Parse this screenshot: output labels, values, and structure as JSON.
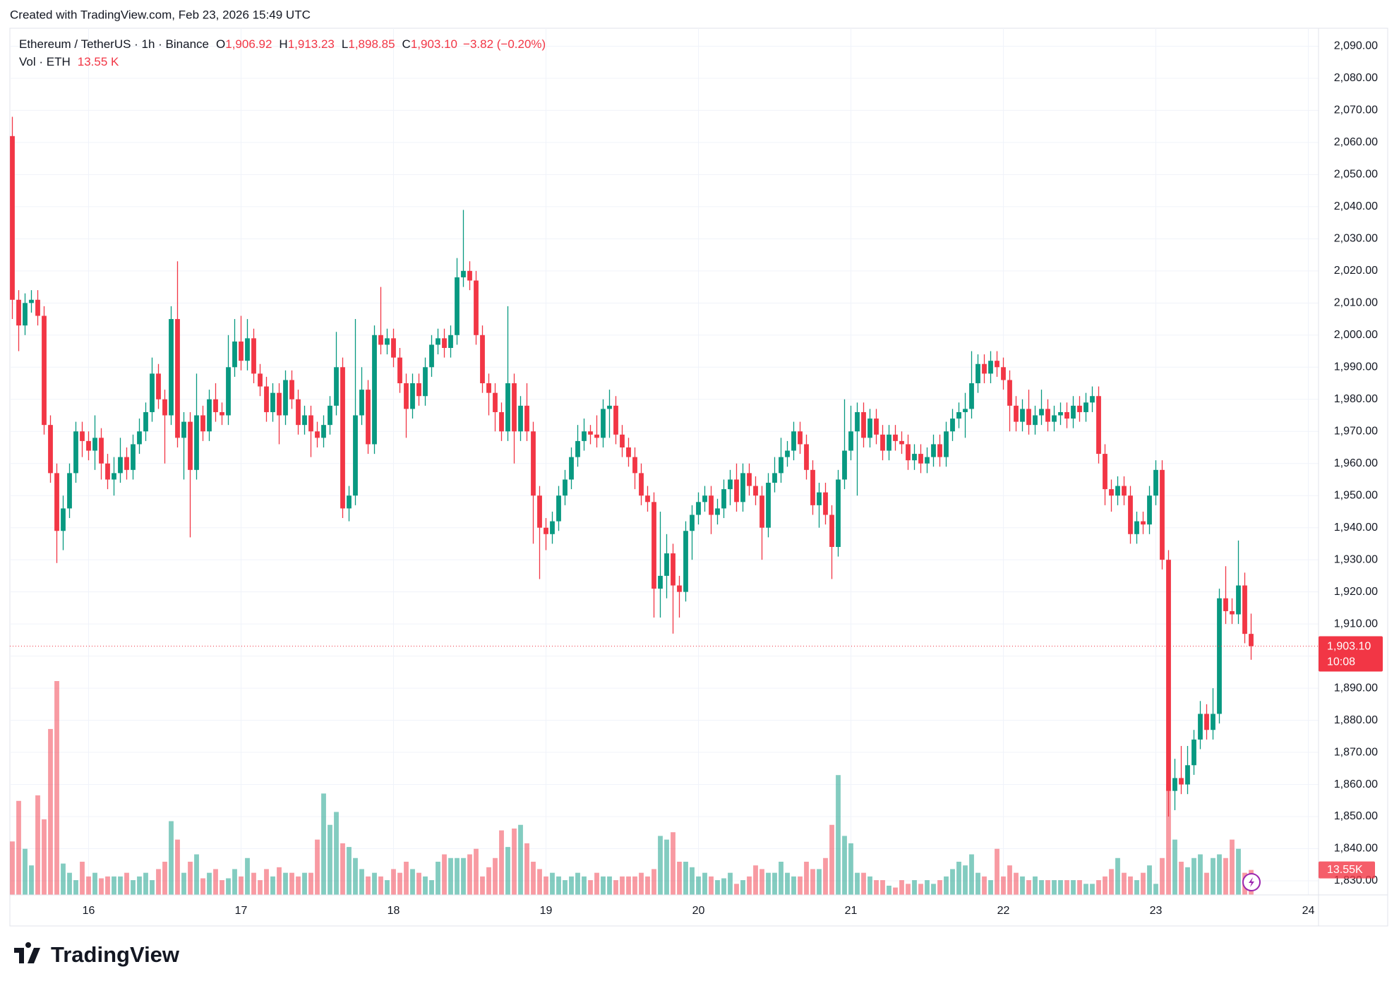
{
  "watermark": "Created with TradingView.com, Feb 23, 2026 15:49 UTC",
  "logo": "TradingView",
  "chart_data": {
    "type": "candlestick",
    "title": "Ethereum / TetherUS · 1h · Binance",
    "ohlc_legend": [
      {
        "key": "O",
        "label": "1,906.92"
      },
      {
        "key": "H",
        "label": "1,913.23"
      },
      {
        "key": "L",
        "label": "1,898.85"
      },
      {
        "key": "C",
        "label": "1,903.10"
      }
    ],
    "change": "−3.82 (−0.20%)",
    "volume_title": "Vol · ETH",
    "volume_label": "13.55 K",
    "volume_tag": "13.55K",
    "last_price_label": "1,903.10",
    "countdown": "10:08",
    "up_color": "#089981",
    "down_color": "#f23645",
    "open": [
      2062,
      2011,
      2003,
      2010,
      2011,
      2006,
      1972,
      1957,
      1939,
      1946,
      1957,
      1970,
      1967,
      1964,
      1968,
      1960,
      1955,
      1957,
      1962,
      1958,
      1966,
      1970,
      1976,
      1988,
      1980,
      1975,
      2005,
      1968,
      1973,
      1958,
      1975,
      1970,
      1980,
      1976,
      1975,
      1990,
      1998,
      1992,
      1999,
      1988,
      1984,
      1976,
      1982,
      1975,
      1986,
      1980,
      1972,
      1975,
      1970,
      1968,
      1972,
      1978,
      1990,
      1946,
      1950,
      1975,
      1983,
      1966,
      2000,
      1997,
      1999,
      1993,
      1985,
      1977,
      1985,
      1981,
      1990,
      1997,
      1999,
      1996,
      2000,
      2018,
      2020,
      2017,
      2000,
      1985,
      1982,
      1976,
      1970,
      1985,
      1970,
      1978,
      1970,
      1950,
      1940,
      1938,
      1942,
      1950,
      1955,
      1962,
      1967,
      1970,
      1969,
      1968,
      1977,
      1978,
      1969,
      1965,
      1962,
      1957,
      1950,
      1948,
      1921,
      1925,
      1932,
      1922,
      1920,
      1939,
      1944,
      1948,
      1950,
      1944,
      1946,
      1952,
      1955,
      1948,
      1957,
      1953,
      1950,
      1940,
      1954,
      1957,
      1962,
      1964,
      1970,
      1966,
      1958,
      1947,
      1951,
      1944,
      1934,
      1955,
      1964,
      1970,
      1976,
      1968,
      1974,
      1969,
      1964,
      1969,
      1967,
      1966,
      1961,
      1963,
      1960,
      1962,
      1966,
      1962,
      1970,
      1974,
      1976,
      1977,
      1985,
      1991,
      1988,
      1992,
      1990,
      1986,
      1978,
      1973,
      1977,
      1972,
      1975,
      1977,
      1973,
      1975,
      1976,
      1974,
      1978,
      1976,
      1979,
      1981,
      1963,
      1952,
      1950,
      1953,
      1950,
      1938,
      1942,
      1941,
      1950,
      1958,
      1930,
      1858,
      1862,
      1860,
      1866,
      1874,
      1882,
      1877,
      1882,
      1918,
      1914,
      1913,
      1922,
      1906.92
    ],
    "high": [
      2068,
      2014,
      2013,
      2014,
      2014,
      2009,
      1975,
      1960,
      1950,
      1960,
      1973,
      1973,
      1970,
      1975,
      1971,
      1963,
      1962,
      1968,
      1965,
      1969,
      1974,
      1979,
      1993,
      1991,
      1983,
      2009,
      2023,
      1976,
      1976,
      1988,
      1978,
      1983,
      1985,
      1979,
      2000,
      2005,
      2006,
      2005,
      2002,
      1991,
      1987,
      1985,
      1985,
      1989,
      1989,
      1983,
      1978,
      1978,
      1973,
      1975,
      1981,
      2001,
      1993,
      1953,
      2005,
      1990,
      1986,
      2003,
      2015,
      2002,
      2002,
      1996,
      1988,
      1988,
      1988,
      1993,
      2000,
      2002,
      2002,
      2003,
      2024,
      2039,
      2023,
      2020,
      2003,
      1988,
      1985,
      1979,
      2009,
      1988,
      1981,
      1985,
      1973,
      1953,
      1943,
      1945,
      1953,
      1958,
      1965,
      1972,
      1974,
      1972,
      1975,
      1980,
      1983,
      1981,
      1972,
      1968,
      1965,
      1960,
      1953,
      1951,
      1945,
      1938,
      1935,
      1925,
      1942,
      1947,
      1951,
      1953,
      1953,
      1949,
      1955,
      1958,
      1960,
      1960,
      1960,
      1956,
      1953,
      1957,
      1962,
      1968,
      1967,
      1973,
      1973,
      1969,
      1961,
      1954,
      1954,
      1947,
      1958,
      1980,
      1978,
      1979,
      1979,
      1977,
      1977,
      1972,
      1972,
      1972,
      1970,
      1969,
      1966,
      1966,
      1965,
      1969,
      1969,
      1973,
      1977,
      1979,
      1982,
      1995,
      1994,
      1994,
      1995,
      1995,
      1993,
      1989,
      1981,
      1980,
      1983,
      1978,
      1983,
      1980,
      1978,
      1979,
      1979,
      1981,
      1981,
      1982,
      1984,
      1984,
      1966,
      1955,
      1956,
      1956,
      1953,
      1945,
      1945,
      1953,
      1961,
      1961,
      1933,
      1868,
      1872,
      1872,
      1877,
      1886,
      1885,
      1890,
      1921,
      1928,
      1918,
      1936,
      1926,
      1913.23
    ],
    "low": [
      2005,
      1995,
      2000,
      2007,
      2003,
      1969,
      1954,
      1929,
      1933,
      1943,
      1954,
      1962,
      1961,
      1958,
      1955,
      1952,
      1950,
      1954,
      1955,
      1955,
      1963,
      1967,
      1973,
      1977,
      1960,
      1972,
      1965,
      1955,
      1937,
      1955,
      1967,
      1967,
      1973,
      1972,
      1972,
      1987,
      1989,
      1989,
      1985,
      1981,
      1973,
      1973,
      1966,
      1972,
      1977,
      1969,
      1969,
      1962,
      1965,
      1965,
      1969,
      1975,
      1943,
      1942,
      1947,
      1972,
      1963,
      1963,
      1994,
      1994,
      1990,
      1982,
      1968,
      1974,
      1978,
      1978,
      1987,
      1994,
      1993,
      1993,
      1997,
      2015,
      2014,
      1997,
      1982,
      1975,
      1970,
      1967,
      1967,
      1960,
      1967,
      1967,
      1935,
      1924,
      1933,
      1935,
      1939,
      1947,
      1952,
      1959,
      1964,
      1966,
      1965,
      1965,
      1968,
      1966,
      1962,
      1959,
      1952,
      1947,
      1945,
      1912,
      1912,
      1918,
      1907,
      1912,
      1917,
      1930,
      1941,
      1945,
      1938,
      1941,
      1943,
      1947,
      1945,
      1945,
      1950,
      1947,
      1930,
      1937,
      1951,
      1954,
      1959,
      1961,
      1963,
      1955,
      1944,
      1940,
      1941,
      1924,
      1931,
      1952,
      1961,
      1950,
      1965,
      1965,
      1966,
      1961,
      1961,
      1964,
      1963,
      1958,
      1958,
      1957,
      1957,
      1959,
      1959,
      1959,
      1967,
      1971,
      1968,
      1974,
      1982,
      1985,
      1985,
      1987,
      1983,
      1970,
      1970,
      1970,
      1969,
      1969,
      1972,
      1970,
      1970,
      1972,
      1971,
      1971,
      1973,
      1973,
      1976,
      1960,
      1947,
      1945,
      1947,
      1947,
      1935,
      1935,
      1938,
      1938,
      1947,
      1927,
      1850,
      1852,
      1857,
      1857,
      1863,
      1871,
      1874,
      1874,
      1879,
      1910,
      1910,
      1910,
      1904,
      1898.85
    ],
    "close": [
      2011,
      2003,
      2010,
      2011,
      2006,
      1972,
      1957,
      1939,
      1946,
      1957,
      1970,
      1967,
      1964,
      1968,
      1960,
      1955,
      1957,
      1962,
      1958,
      1966,
      1970,
      1976,
      1988,
      1980,
      1975,
      2005,
      1968,
      1973,
      1958,
      1975,
      1970,
      1980,
      1976,
      1975,
      1990,
      1998,
      1992,
      1999,
      1988,
      1984,
      1976,
      1982,
      1975,
      1986,
      1980,
      1972,
      1975,
      1970,
      1968,
      1972,
      1978,
      1990,
      1946,
      1950,
      1975,
      1983,
      1966,
      2000,
      1997,
      1999,
      1993,
      1985,
      1977,
      1985,
      1981,
      1990,
      1997,
      1999,
      1996,
      2000,
      2018,
      2020,
      2017,
      2000,
      1985,
      1982,
      1976,
      1970,
      1985,
      1970,
      1978,
      1970,
      1950,
      1940,
      1938,
      1942,
      1950,
      1955,
      1962,
      1967,
      1970,
      1969,
      1968,
      1977,
      1978,
      1969,
      1965,
      1962,
      1957,
      1950,
      1948,
      1921,
      1925,
      1932,
      1922,
      1920,
      1939,
      1944,
      1948,
      1950,
      1944,
      1946,
      1952,
      1955,
      1948,
      1957,
      1953,
      1950,
      1940,
      1954,
      1957,
      1962,
      1964,
      1970,
      1966,
      1958,
      1947,
      1951,
      1944,
      1934,
      1955,
      1964,
      1970,
      1976,
      1968,
      1974,
      1969,
      1964,
      1969,
      1967,
      1966,
      1961,
      1963,
      1960,
      1962,
      1966,
      1962,
      1970,
      1974,
      1976,
      1977,
      1985,
      1991,
      1988,
      1992,
      1990,
      1986,
      1978,
      1973,
      1977,
      1972,
      1975,
      1977,
      1973,
      1975,
      1976,
      1974,
      1978,
      1976,
      1979,
      1981,
      1963,
      1952,
      1950,
      1953,
      1950,
      1938,
      1942,
      1941,
      1950,
      1958,
      1930,
      1858,
      1862,
      1860,
      1866,
      1874,
      1882,
      1877,
      1882,
      1918,
      1914,
      1913,
      1922,
      1906.92,
      1903.1
    ],
    "volume": [
      29,
      51,
      25,
      16,
      54,
      41,
      90,
      116,
      17,
      12,
      8,
      18,
      10,
      12,
      9,
      10,
      10,
      10,
      12,
      8,
      10,
      12,
      8,
      14,
      18,
      40,
      30,
      12,
      18,
      22,
      9,
      12,
      14,
      8,
      9,
      14,
      10,
      20,
      12,
      8,
      14,
      10,
      15,
      12,
      12,
      10,
      12,
      12,
      30,
      55,
      38,
      45,
      28,
      26,
      20,
      14,
      10,
      12,
      10,
      8,
      14,
      12,
      18,
      14,
      12,
      10,
      8,
      18,
      22,
      20,
      20,
      20,
      22,
      25,
      10,
      15,
      20,
      35,
      26,
      36,
      38,
      28,
      18,
      14,
      10,
      12,
      10,
      8,
      10,
      12,
      10,
      8,
      12,
      10,
      10,
      8,
      10,
      10,
      10,
      12,
      10,
      14,
      32,
      30,
      34,
      18,
      18,
      15,
      10,
      12,
      10,
      8,
      9,
      12,
      6,
      8,
      10,
      16,
      14,
      12,
      12,
      18,
      12,
      10,
      10,
      18,
      14,
      14,
      20,
      38,
      65,
      32,
      28,
      12,
      12,
      10,
      8,
      8,
      5,
      4,
      8,
      6,
      8,
      6,
      8,
      6,
      8,
      10,
      14,
      18,
      16,
      22,
      12,
      10,
      8,
      25,
      10,
      16,
      12,
      10,
      8,
      10,
      8,
      8,
      8,
      8,
      8,
      8,
      8,
      6,
      6,
      8,
      10,
      14,
      20,
      12,
      10,
      8,
      12,
      16,
      6,
      20,
      60,
      30,
      18,
      15,
      20,
      22,
      12,
      20,
      22,
      20,
      30,
      25,
      12,
      13.55
    ],
    "ylim": [
      1825.6,
      2095.6
    ],
    "yticks": [
      {
        "value": 1830,
        "label": "1,830.00"
      },
      {
        "value": 1840,
        "label": "1,840.00"
      },
      {
        "value": 1850,
        "label": "1,850.00"
      },
      {
        "value": 1860,
        "label": "1,860.00"
      },
      {
        "value": 1870,
        "label": "1,870.00"
      },
      {
        "value": 1880,
        "label": "1,880.00"
      },
      {
        "value": 1890,
        "label": "1,890.00"
      },
      {
        "value": 1900,
        "label": "1,900.00"
      },
      {
        "value": 1910,
        "label": "1,910.00"
      },
      {
        "value": 1920,
        "label": "1,920.00"
      },
      {
        "value": 1930,
        "label": "1,930.00"
      },
      {
        "value": 1940,
        "label": "1,940.00"
      },
      {
        "value": 1950,
        "label": "1,950.00"
      },
      {
        "value": 1960,
        "label": "1,960.00"
      },
      {
        "value": 1970,
        "label": "1,970.00"
      },
      {
        "value": 1980,
        "label": "1,980.00"
      },
      {
        "value": 1990,
        "label": "1,990.00"
      },
      {
        "value": 2000,
        "label": "2,000.00"
      },
      {
        "value": 2010,
        "label": "2,010.00"
      },
      {
        "value": 2020,
        "label": "2,020.00"
      },
      {
        "value": 2030,
        "label": "2,030.00"
      },
      {
        "value": 2040,
        "label": "2,040.00"
      },
      {
        "value": 2050,
        "label": "2,050.00"
      },
      {
        "value": 2060,
        "label": "2,060.00"
      },
      {
        "value": 2070,
        "label": "2,070.00"
      },
      {
        "value": 2080,
        "label": "2,080.00"
      },
      {
        "value": 2090,
        "label": "2,090.00"
      }
    ],
    "xticks": [
      "16",
      "17",
      "18",
      "19",
      "20",
      "21",
      "22",
      "23",
      "24"
    ],
    "grid": true
  }
}
